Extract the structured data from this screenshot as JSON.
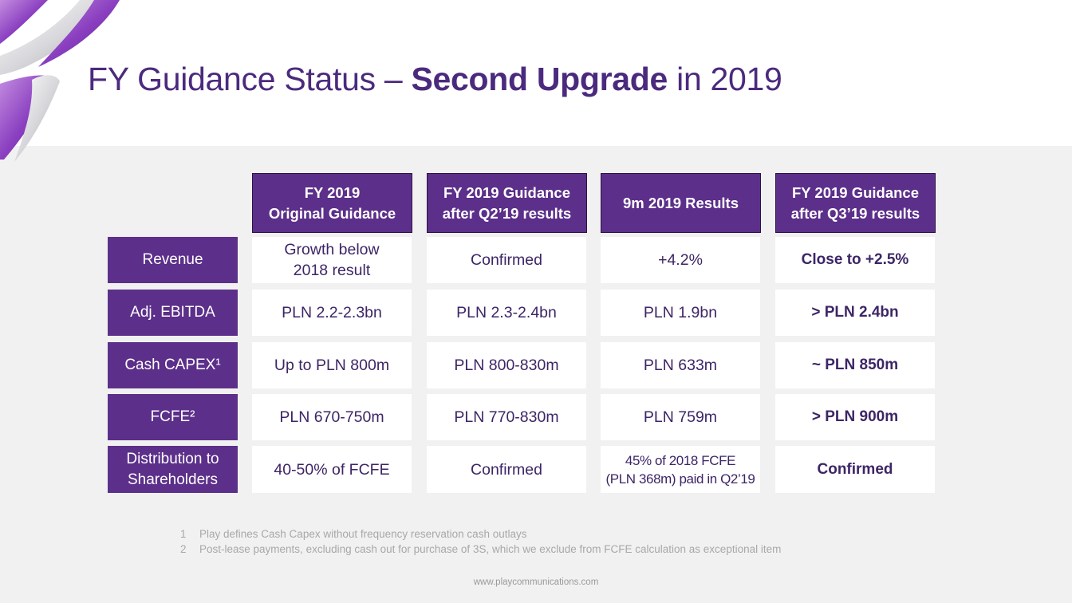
{
  "slide": {
    "title_prefix": "FY Guidance Status – ",
    "title_bold": "Second Upgrade",
    "title_suffix": " in 2019"
  },
  "table": {
    "columns": [
      {
        "line1": "FY 2019",
        "line2": "Original Guidance"
      },
      {
        "line1": "FY 2019 Guidance",
        "line2": "after Q2’19 results"
      },
      {
        "line1": "9m 2019 Results",
        "line2": ""
      },
      {
        "line1": "FY 2019 Guidance",
        "line2": "after Q3’19 results"
      }
    ],
    "rows": [
      {
        "label_line1": "Revenue",
        "label_line2": "",
        "cells": [
          {
            "line1": "Growth below",
            "line2": "2018 result"
          },
          {
            "line1": "Confirmed",
            "line2": ""
          },
          {
            "line1": "+4.2%",
            "line2": ""
          },
          {
            "line1": "Close to +2.5%",
            "line2": ""
          }
        ]
      },
      {
        "label_line1": "Adj. EBITDA",
        "label_line2": "",
        "cells": [
          {
            "line1": "PLN 2.2-2.3bn",
            "line2": ""
          },
          {
            "line1": "PLN 2.3-2.4bn",
            "line2": ""
          },
          {
            "line1": "PLN 1.9bn",
            "line2": ""
          },
          {
            "line1": "> PLN 2.4bn",
            "line2": ""
          }
        ]
      },
      {
        "label_line1": "Cash CAPEX¹",
        "label_line2": "",
        "cells": [
          {
            "line1": "Up to PLN 800m",
            "line2": ""
          },
          {
            "line1": "PLN 800-830m",
            "line2": ""
          },
          {
            "line1": "PLN 633m",
            "line2": ""
          },
          {
            "line1": "~ PLN 850m",
            "line2": ""
          }
        ]
      },
      {
        "label_line1": "FCFE²",
        "label_line2": "",
        "cells": [
          {
            "line1": "PLN 670-750m",
            "line2": ""
          },
          {
            "line1": "PLN 770-830m",
            "line2": ""
          },
          {
            "line1": "PLN 759m",
            "line2": ""
          },
          {
            "line1": "> PLN 900m",
            "line2": ""
          }
        ]
      },
      {
        "label_line1": "Distribution to",
        "label_line2": "Shareholders",
        "cells": [
          {
            "line1": "40-50% of FCFE",
            "line2": ""
          },
          {
            "line1": "Confirmed",
            "line2": ""
          },
          {
            "line1": "45% of 2018 FCFE",
            "line2": "(PLN 368m) paid in Q2’19"
          },
          {
            "line1": "Confirmed",
            "line2": ""
          }
        ]
      }
    ]
  },
  "footnotes": [
    {
      "num": "1",
      "text": "Play defines Cash Capex without frequency reservation cash outlays"
    },
    {
      "num": "2",
      "text": "Post-lease payments, excluding cash out for purchase of 3S, which we exclude from FCFE calculation as exceptional item"
    }
  ],
  "website": "www.playcommunications.com",
  "colors": {
    "brand_purple": "#5c2f8a",
    "title_purple": "#4b2a7e",
    "background": "#f1f1f1"
  },
  "icons": {
    "logo": "play-logo-swoosh"
  }
}
